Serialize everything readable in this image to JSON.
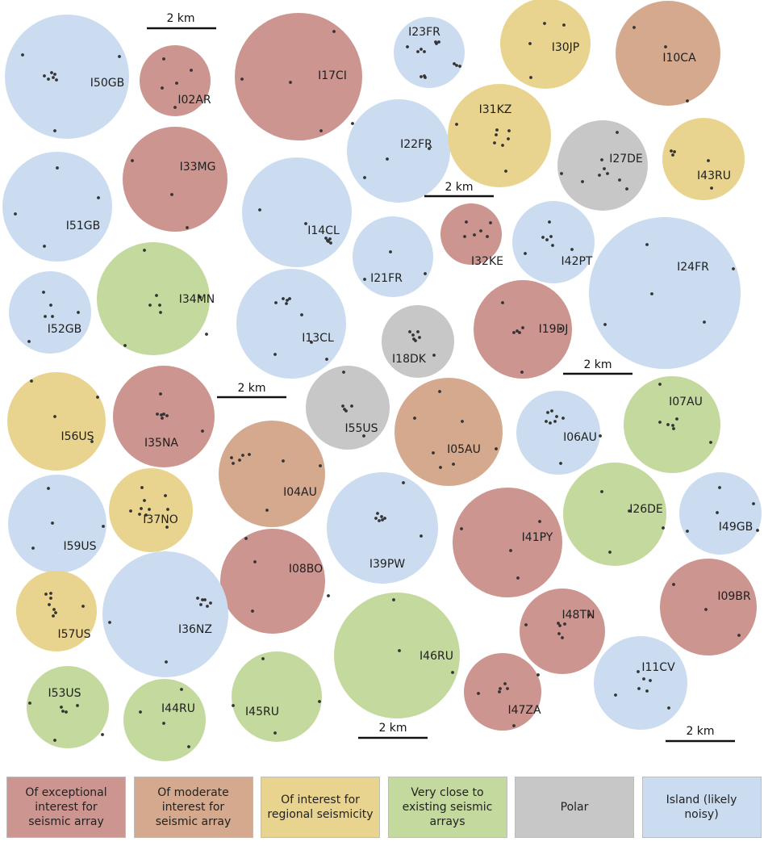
{
  "colors": {
    "exceptional": "#cc9590",
    "moderate": "#d4a98e",
    "regional": "#e9d48f",
    "close": "#c4d99d",
    "polar": "#c7c7c7",
    "island": "#cbdcf1",
    "dot": "#333333"
  },
  "scale_bar": {
    "label": "2 km"
  },
  "stations": [
    {
      "id": "I50GB",
      "cat": "island"
    },
    {
      "id": "I02AR",
      "cat": "exceptional"
    },
    {
      "id": "I17CI",
      "cat": "exceptional"
    },
    {
      "id": "I23FR",
      "cat": "island"
    },
    {
      "id": "I30JP",
      "cat": "regional"
    },
    {
      "id": "I10CA",
      "cat": "moderate"
    },
    {
      "id": "I22FR",
      "cat": "island"
    },
    {
      "id": "I31KZ",
      "cat": "regional"
    },
    {
      "id": "I27DE",
      "cat": "polar"
    },
    {
      "id": "I43RU",
      "cat": "regional"
    },
    {
      "id": "I33MG",
      "cat": "exceptional"
    },
    {
      "id": "I51GB",
      "cat": "island"
    },
    {
      "id": "I14CL",
      "cat": "island"
    },
    {
      "id": "I32KE",
      "cat": "exceptional"
    },
    {
      "id": "I42PT",
      "cat": "island"
    },
    {
      "id": "I21FR",
      "cat": "island"
    },
    {
      "id": "I24FR",
      "cat": "island"
    },
    {
      "id": "I34MN",
      "cat": "close"
    },
    {
      "id": "I52GB",
      "cat": "island"
    },
    {
      "id": "I13CL",
      "cat": "island"
    },
    {
      "id": "I18DK",
      "cat": "polar"
    },
    {
      "id": "I19DJ",
      "cat": "exceptional"
    },
    {
      "id": "I56US",
      "cat": "regional"
    },
    {
      "id": "I35NA",
      "cat": "exceptional"
    },
    {
      "id": "I55US",
      "cat": "polar"
    },
    {
      "id": "I05AU",
      "cat": "moderate"
    },
    {
      "id": "I06AU",
      "cat": "island"
    },
    {
      "id": "I07AU",
      "cat": "close"
    },
    {
      "id": "I04AU",
      "cat": "moderate"
    },
    {
      "id": "I59US",
      "cat": "island"
    },
    {
      "id": "I37NO",
      "cat": "regional"
    },
    {
      "id": "I39PW",
      "cat": "island"
    },
    {
      "id": "I41PY",
      "cat": "exceptional"
    },
    {
      "id": "I26DE",
      "cat": "close"
    },
    {
      "id": "I49GB",
      "cat": "island"
    },
    {
      "id": "I08BO",
      "cat": "exceptional"
    },
    {
      "id": "I57US",
      "cat": "regional"
    },
    {
      "id": "I36NZ",
      "cat": "island"
    },
    {
      "id": "I48TN",
      "cat": "exceptional"
    },
    {
      "id": "I09BR",
      "cat": "exceptional"
    },
    {
      "id": "I46RU",
      "cat": "close"
    },
    {
      "id": "I53US",
      "cat": "close"
    },
    {
      "id": "I44RU",
      "cat": "close"
    },
    {
      "id": "I45RU",
      "cat": "close"
    },
    {
      "id": "I47ZA",
      "cat": "exceptional"
    },
    {
      "id": "I11CV",
      "cat": "island"
    }
  ],
  "legend": [
    {
      "cat": "exceptional",
      "label": "Of exceptional interest for seismic array"
    },
    {
      "cat": "moderate",
      "label": "Of moderate interest for seismic array"
    },
    {
      "cat": "regional",
      "label": "Of interest for regional seismicity"
    },
    {
      "cat": "close",
      "label": "Very close to existing seismic arrays"
    },
    {
      "cat": "polar",
      "label": "Polar"
    },
    {
      "cat": "island",
      "label": "Island (likely noisy)"
    }
  ]
}
